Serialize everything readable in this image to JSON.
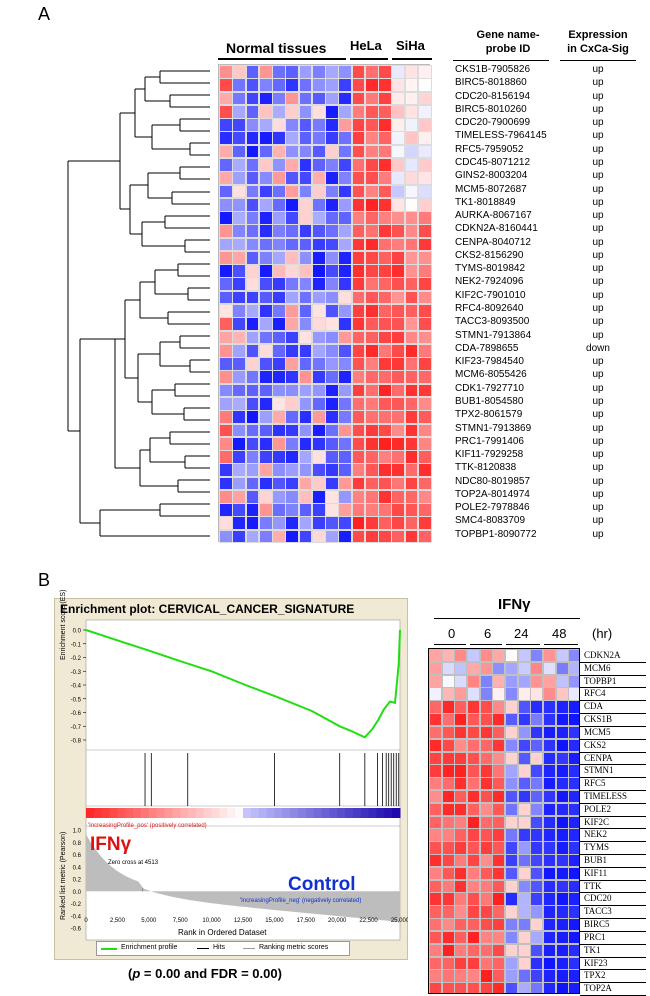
{
  "panel_a": {
    "label": "A",
    "group_labels": {
      "normal": "Normal tissues",
      "hela": "HeLa",
      "siha": "SiHa"
    },
    "col_headers": {
      "gene": "Gene name-\nprobe ID",
      "expression": "Expression\nin CxCa-Sig"
    },
    "genes": [
      "CKS1B-7905826",
      "BIRC5-8018860",
      "CDC20-8156194",
      "BIRC5-8010260",
      "CDC20-7900699",
      "TIMELESS-7964145",
      "RFC5-7959052",
      "CDC45-8071212",
      "GINS2-8003204",
      "MCM5-8072687",
      "TK1-8018849",
      "AURKA-8067167",
      "CDKN2A-8160441",
      "CENPA-8040712",
      "CKS2-8156290",
      "TYMS-8019842",
      "NEK2-7924096",
      "KIF2C-7901010",
      "RFC4-8092640",
      "TACC3-8093500",
      "STMN1-7913864",
      "CDA-7898655",
      "KIF23-7984540",
      "MCM6-8055426",
      "CDK1-7927710",
      "BUB1-8054580",
      "TPX2-8061579",
      "STMN1-7913869",
      "PRC1-7991406",
      "KIF11-7929258",
      "TTK-8120838",
      "NDC80-8019857",
      "TOP2A-8014974",
      "POLE2-7978846",
      "SMC4-8083709",
      "TOPBP1-8090772"
    ],
    "expression": [
      "up",
      "up",
      "up",
      "up",
      "up",
      "up",
      "up",
      "up",
      "up",
      "up",
      "up",
      "up",
      "up",
      "up",
      "up",
      "up",
      "up",
      "up",
      "up",
      "up",
      "up",
      "down",
      "up",
      "up",
      "up",
      "up",
      "up",
      "up",
      "up",
      "up",
      "up",
      "up",
      "up",
      "up",
      "up",
      "up"
    ]
  },
  "panel_b": {
    "label": "B",
    "enrichment": {
      "title": "Enrichment plot: CERVICAL_CANCER_SIGNATURE",
      "es_label": "Enrichment score (ES)",
      "rank_metric_label": "Ranked list metric (Pearson)",
      "x_label": "Rank in Ordered Dataset",
      "pos_label": "'IncreasingProfile_pos' (positively correlated)",
      "neg_label": "'IncreasingProfile_neg' (negatively correlated)",
      "zero_cross": "Zero cross at 4513",
      "left_group": "IFNγ",
      "right_group": "Control",
      "legend": [
        "Enrichment profile",
        "Hits",
        "Ranking metric scores"
      ],
      "footnote_p": "p",
      "footnote_val": " = 0.00 and FDR = 0.00)"
    },
    "chart_data": {
      "type": "line",
      "title": "Enrichment plot: CERVICAL_CANCER_SIGNATURE",
      "xlabel": "Rank in Ordered Dataset",
      "ylabel": "Enrichment score (ES)",
      "xlim": [
        0,
        25000
      ],
      "ylim": [
        -0.8,
        0.0
      ],
      "x_ticks": [
        "0",
        "2,500",
        "5,000",
        "7,500",
        "10,000",
        "12,500",
        "15,000",
        "17,500",
        "20,000",
        "22,500",
        "25,000"
      ],
      "y_ticks": [
        "0.0",
        "-0.1",
        "-0.2",
        "-0.3",
        "-0.4",
        "-0.5",
        "-0.6",
        "-0.7",
        "-0.8"
      ],
      "rank_y_ticks": [
        "1.0",
        "0.8",
        "0.6",
        "0.4",
        "0.2",
        "0.0",
        "-0.2",
        "-0.4",
        "-0.6"
      ],
      "x": [
        0,
        3000,
        5000,
        7600,
        10000,
        12700,
        15300,
        18000,
        20200,
        21000,
        22200,
        22800,
        23300,
        23700,
        24200,
        24600,
        24900,
        25000
      ],
      "y": [
        0.0,
        -0.09,
        -0.15,
        -0.23,
        -0.3,
        -0.4,
        -0.49,
        -0.59,
        -0.7,
        -0.73,
        -0.78,
        -0.72,
        -0.65,
        -0.58,
        -0.52,
        -0.53,
        -0.25,
        0.0
      ],
      "hits": [
        4700,
        5200,
        8100,
        15000,
        20200,
        22200,
        23200,
        23600,
        23900,
        24100,
        24300,
        24500,
        24700,
        24900
      ],
      "zero_cross": 4513
    },
    "ifn_heatmap": {
      "treatment": "IFNγ",
      "timepoints": [
        "0",
        "6",
        "24",
        "48"
      ],
      "unit": "(hr)",
      "genes": [
        "CDKN2A",
        "MCM6",
        "TOPBP1",
        "RFC4",
        "CDA",
        "CKS1B",
        "MCM5",
        "CKS2",
        "CENPA",
        "STMN1",
        "RFC5",
        "TIMELESS",
        "POLE2",
        "KIF2C",
        "NEK2",
        "TYMS",
        "BUB1",
        "KIF11",
        "TTK",
        "CDC20",
        "TACC3",
        "BIRC5",
        "PRC1",
        "TK1",
        "KIF23",
        "TPX2",
        "TOP2A"
      ]
    }
  }
}
